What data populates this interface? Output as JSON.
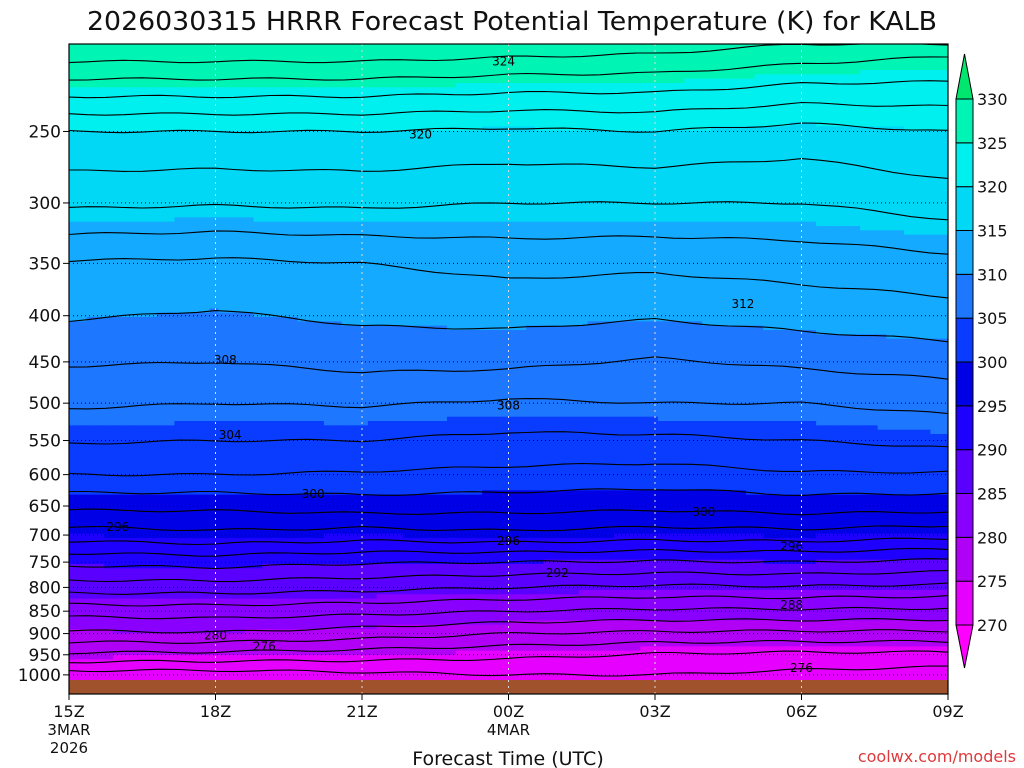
{
  "chart_data": {
    "type": "heatmap",
    "title": "2026030315 HRRR Forecast Potential Temperature (K) for KALB",
    "xlabel": "Forecast Time (UTC)",
    "ylabel": "",
    "credit": "coolwx.com/models",
    "y_scale": "log",
    "y_inverted": true,
    "ylim_hpa": [
      1050,
      200
    ],
    "y_ticks": [
      {
        "value": 250,
        "label": "250"
      },
      {
        "value": 300,
        "label": "300"
      },
      {
        "value": 350,
        "label": "350"
      },
      {
        "value": 400,
        "label": "400"
      },
      {
        "value": 450,
        "label": "450"
      },
      {
        "value": 500,
        "label": "500"
      },
      {
        "value": 550,
        "label": "550"
      },
      {
        "value": 600,
        "label": "600"
      },
      {
        "value": 650,
        "label": "650"
      },
      {
        "value": 700,
        "label": "700"
      },
      {
        "value": 750,
        "label": "750"
      },
      {
        "value": 800,
        "label": "800"
      },
      {
        "value": 850,
        "label": "850"
      },
      {
        "value": 900,
        "label": "900"
      },
      {
        "value": 950,
        "label": "950"
      },
      {
        "value": 1000,
        "label": "1000"
      }
    ],
    "xlim_hours": [
      0,
      18
    ],
    "x_ticks": [
      {
        "hour": 0,
        "label": "15Z",
        "sub": [
          "3MAR",
          "2026"
        ]
      },
      {
        "hour": 3,
        "label": "18Z",
        "sub": []
      },
      {
        "hour": 6,
        "label": "21Z",
        "sub": []
      },
      {
        "hour": 9,
        "label": "00Z",
        "sub": [
          "4MAR"
        ]
      },
      {
        "hour": 12,
        "label": "03Z",
        "sub": []
      },
      {
        "hour": 15,
        "label": "06Z",
        "sub": []
      },
      {
        "hour": 18,
        "label": "09Z",
        "sub": []
      }
    ],
    "grid": true,
    "colorbar": {
      "levels": [
        270,
        275,
        280,
        285,
        290,
        295,
        300,
        305,
        310,
        315,
        320,
        325,
        330
      ],
      "colors": [
        "#ff00ff",
        "#e600ff",
        "#b000f5",
        "#8a00ff",
        "#5a00ff",
        "#1e00ff",
        "#0000e6",
        "#0a3cff",
        "#1e78ff",
        "#14aaff",
        "#00d8f5",
        "#00f0f0",
        "#00f5b4",
        "#00e66e"
      ]
    },
    "contour_labels": [
      {
        "value": 324,
        "hour": 8.9,
        "hpa": 209
      },
      {
        "value": 320,
        "hour": 7.2,
        "hpa": 252
      },
      {
        "value": 312,
        "hour": 13.8,
        "hpa": 388
      },
      {
        "value": 308,
        "hour": 3.2,
        "hpa": 448
      },
      {
        "value": 308,
        "hour": 9.0,
        "hpa": 503
      },
      {
        "value": 304,
        "hour": 3.3,
        "hpa": 542
      },
      {
        "value": 300,
        "hour": 5.0,
        "hpa": 630
      },
      {
        "value": 300,
        "hour": 13.0,
        "hpa": 660
      },
      {
        "value": 296,
        "hour": 1.0,
        "hpa": 686
      },
      {
        "value": 296,
        "hour": 9.0,
        "hpa": 711
      },
      {
        "value": 296,
        "hour": 14.8,
        "hpa": 721
      },
      {
        "value": 292,
        "hour": 10.0,
        "hpa": 771
      },
      {
        "value": 288,
        "hour": 14.8,
        "hpa": 837
      },
      {
        "value": 280,
        "hour": 3.0,
        "hpa": 905
      },
      {
        "value": 276,
        "hour": 4.0,
        "hpa": 930
      },
      {
        "value": 276,
        "hour": 15.0,
        "hpa": 983
      }
    ],
    "theta_profiles": [
      {
        "hour": 0,
        "hpa": [
          1000,
          950,
          900,
          850,
          800,
          750,
          700,
          650,
          600,
          550,
          500,
          450,
          400,
          350,
          300,
          250,
          200
        ],
        "theta": [
          271.0,
          275.6,
          279.6,
          282.8,
          287.0,
          290.5,
          295.0,
          298.5,
          302.0,
          304.2,
          306.3,
          308.2,
          310.2,
          311.8,
          316.4,
          320.0,
          330.0
        ]
      },
      {
        "hour": 3,
        "hpa": [
          1000,
          950,
          900,
          850,
          800,
          750,
          700,
          650,
          600,
          550,
          500,
          450,
          400,
          350,
          300,
          250,
          200
        ],
        "theta": [
          271.0,
          275.4,
          279.8,
          283.0,
          287.0,
          290.8,
          295.5,
          298.5,
          302.0,
          304.0,
          306.0,
          308.0,
          309.8,
          311.6,
          316.2,
          320.0,
          330.0
        ]
      },
      {
        "hour": 6,
        "hpa": [
          1000,
          950,
          900,
          850,
          800,
          750,
          700,
          650,
          600,
          550,
          500,
          450,
          400,
          350,
          300,
          250,
          200
        ],
        "theta": [
          271.5,
          275.0,
          279.0,
          282.6,
          286.6,
          290.2,
          295.0,
          299.0,
          301.8,
          304.0,
          306.2,
          308.6,
          310.4,
          312.0,
          316.4,
          320.0,
          330.0
        ]
      },
      {
        "hour": 9,
        "hpa": [
          1000,
          950,
          900,
          850,
          800,
          750,
          700,
          650,
          600,
          550,
          500,
          450,
          400,
          350,
          300,
          250,
          200
        ],
        "theta": [
          272.0,
          274.5,
          278.0,
          282.0,
          286.0,
          290.0,
          295.5,
          298.8,
          301.5,
          303.5,
          305.7,
          308.5,
          310.6,
          312.6,
          316.0,
          319.6,
          329.5
        ]
      },
      {
        "hour": 12,
        "hpa": [
          1000,
          950,
          900,
          850,
          800,
          750,
          700,
          650,
          600,
          550,
          500,
          450,
          400,
          350,
          300,
          250,
          200
        ],
        "theta": [
          272.0,
          273.8,
          277.6,
          281.6,
          285.6,
          289.8,
          295.0,
          298.5,
          301.2,
          303.6,
          306.0,
          307.8,
          310.2,
          312.4,
          316.0,
          320.0,
          329.0
        ]
      },
      {
        "hour": 15,
        "hpa": [
          1000,
          950,
          900,
          850,
          800,
          750,
          700,
          650,
          600,
          550,
          500,
          450,
          400,
          350,
          300,
          250,
          200
        ],
        "theta": [
          271.5,
          273.5,
          277.5,
          281.6,
          285.8,
          290.0,
          295.2,
          299.0,
          301.8,
          304.0,
          306.0,
          308.4,
          310.8,
          312.8,
          316.0,
          319.2,
          328.0
        ]
      },
      {
        "hour": 18,
        "hpa": [
          1000,
          950,
          900,
          850,
          800,
          750,
          700,
          650,
          600,
          550,
          500,
          450,
          400,
          350,
          300,
          250,
          200
        ],
        "theta": [
          271.0,
          273.5,
          277.5,
          281.5,
          285.5,
          289.5,
          294.6,
          298.8,
          301.8,
          304.6,
          306.6,
          309.0,
          311.2,
          313.4,
          317.0,
          320.0,
          327.0
        ]
      }
    ]
  }
}
